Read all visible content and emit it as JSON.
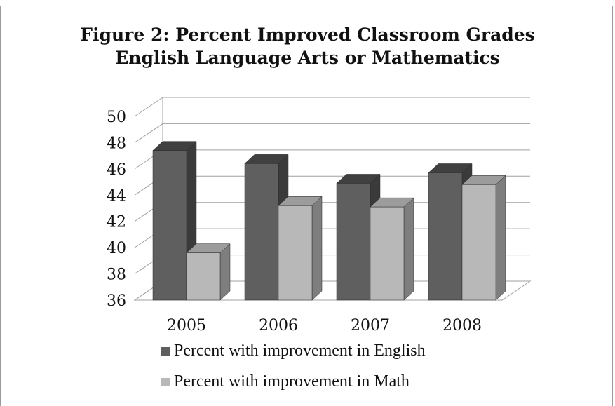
{
  "chart_data": {
    "type": "bar",
    "title": [
      "Figure 2: Percent Improved Classroom Grades",
      "English Language Arts or Mathematics"
    ],
    "categories": [
      "2005",
      "2006",
      "2007",
      "2008"
    ],
    "series": [
      {
        "name": "Percent with improvement in English",
        "values": [
          47.4,
          46.4,
          44.9,
          45.7
        ],
        "color": "#5f5f5f",
        "top_color": "#404040",
        "side_color": "#3a3a3a"
      },
      {
        "name": "Percent with improvement in Math",
        "values": [
          39.6,
          43.2,
          43.1,
          44.8
        ],
        "color": "#b8b8b8",
        "top_color": "#9c9c9c",
        "side_color": "#7e7e7e"
      }
    ],
    "y_ticks": [
      "36",
      "38",
      "40",
      "42",
      "44",
      "46",
      "48",
      "50"
    ],
    "ylim": [
      36,
      50
    ],
    "xlabel": "",
    "ylabel": "",
    "grid": true,
    "legend_position": "bottom",
    "three_d": true
  }
}
